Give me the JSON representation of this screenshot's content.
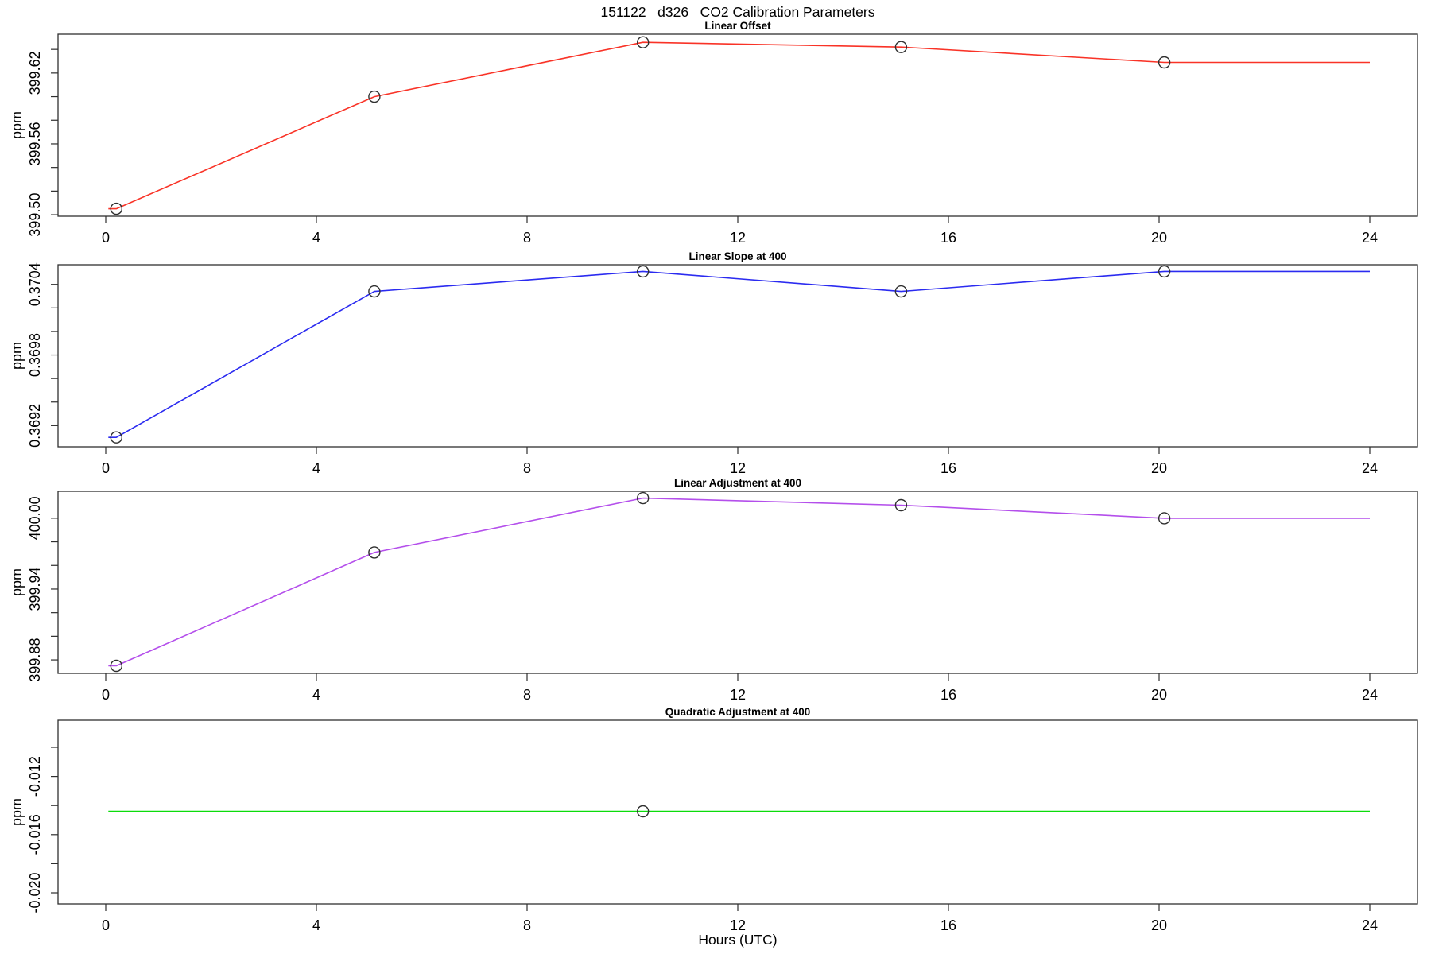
{
  "figure": {
    "title": "151122   d326   CO2 Calibration Parameters",
    "xlabel": "Hours (UTC)",
    "background": "#ffffff",
    "axis_color": "#2f2f2f",
    "text_color": "#000000",
    "xticks": [
      {
        "value": 0,
        "text": "0"
      },
      {
        "value": 4,
        "text": "4"
      },
      {
        "value": 8,
        "text": "8"
      },
      {
        "value": 12,
        "text": "12"
      },
      {
        "value": 16,
        "text": "16"
      },
      {
        "value": 20,
        "text": "20"
      },
      {
        "value": 24,
        "text": "24"
      }
    ]
  },
  "chart_data": [
    {
      "type": "line",
      "title": "Linear Offset",
      "ylabel": "ppm",
      "series_color": "#f93327",
      "marker": {
        "shape": "open-circle",
        "color": "#2f2f2f",
        "radius": 7
      },
      "x": [
        0.2,
        5.1,
        10.2,
        15.1,
        20.1
      ],
      "y": [
        399.505,
        399.6,
        399.646,
        399.642,
        399.629
      ],
      "line_x_start": 0.05,
      "line_x_end": 24,
      "xlim": [
        0,
        24
      ],
      "ylim": [
        399.4987,
        399.6529
      ],
      "yticks": [
        399.5,
        399.52,
        399.54,
        399.56,
        399.58,
        399.6,
        399.62,
        399.64
      ],
      "ytick_labels": [
        {
          "value": 399.5,
          "text": "399.50"
        },
        {
          "value": 399.56,
          "text": "399.56"
        },
        {
          "value": 399.62,
          "text": "399.62"
        }
      ]
    },
    {
      "type": "line",
      "title": "Linear Slope at 400",
      "ylabel": "ppm",
      "series_color": "#2b2bf0",
      "marker": {
        "shape": "open-circle",
        "color": "#2f2f2f",
        "radius": 7
      },
      "x": [
        0.2,
        5.1,
        10.2,
        15.1,
        20.1
      ],
      "y": [
        0.3691,
        0.37034,
        0.37051,
        0.37034,
        0.37051
      ],
      "line_x_start": 0.05,
      "line_x_end": 24,
      "xlim": [
        0,
        24
      ],
      "ylim": [
        0.36902,
        0.370567
      ],
      "yticks": [
        0.3692,
        0.3694,
        0.3696,
        0.3698,
        0.37,
        0.3702,
        0.3704
      ],
      "ytick_labels": [
        {
          "value": 0.3692,
          "text": "0.3692"
        },
        {
          "value": 0.3698,
          "text": "0.3698"
        },
        {
          "value": 0.3704,
          "text": "0.3704"
        }
      ]
    },
    {
      "type": "line",
      "title": "Linear Adjustment at 400",
      "ylabel": "ppm",
      "series_color": "#b44feb",
      "marker": {
        "shape": "open-circle",
        "color": "#2f2f2f",
        "radius": 7
      },
      "x": [
        0.2,
        5.1,
        10.2,
        15.1,
        20.1
      ],
      "y": [
        399.875,
        399.971,
        400.017,
        400.011,
        400.0
      ],
      "line_x_start": 0.05,
      "line_x_end": 24,
      "xlim": [
        0,
        24
      ],
      "ylim": [
        399.8686,
        400.0228
      ],
      "yticks": [
        399.88,
        399.9,
        399.92,
        399.94,
        399.96,
        399.98,
        400.0
      ],
      "ytick_labels": [
        {
          "value": 399.88,
          "text": "399.88"
        },
        {
          "value": 399.94,
          "text": "399.94"
        },
        {
          "value": 400.0,
          "text": "400.00"
        }
      ]
    },
    {
      "type": "line",
      "title": "Quadratic Adjustment at 400",
      "ylabel": "ppm",
      "series_color": "#0bdc0b",
      "marker": {
        "shape": "open-circle",
        "color": "#2f2f2f",
        "radius": 7
      },
      "x": [
        10.2
      ],
      "y": [
        -0.0144
      ],
      "line_x_start": 0.05,
      "line_x_end": 24,
      "xlim": [
        0,
        24
      ],
      "ylim": [
        -0.020765,
        -0.008142
      ],
      "yticks": [
        -0.02,
        -0.018,
        -0.016,
        -0.014,
        -0.012,
        -0.01
      ],
      "ytick_labels": [
        {
          "value": -0.02,
          "text": "-0.020"
        },
        {
          "value": -0.016,
          "text": "-0.016"
        },
        {
          "value": -0.012,
          "text": "-0.012"
        }
      ]
    }
  ]
}
